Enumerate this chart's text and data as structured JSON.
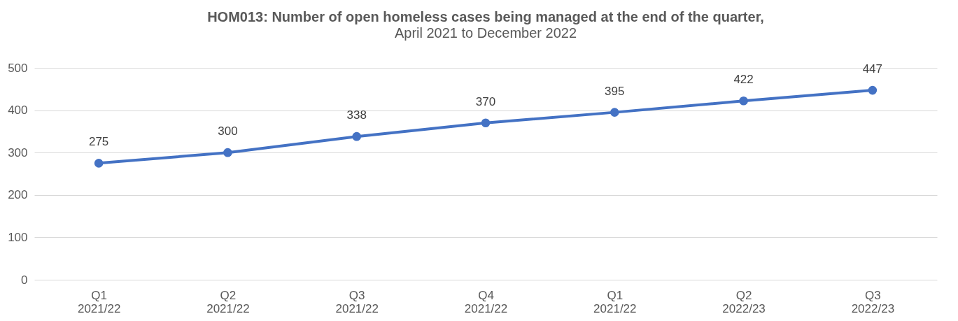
{
  "chart_data": {
    "type": "line",
    "title": "HOM013: Number of open homeless cases being managed at the end of the quarter,",
    "subtitle": "April 2021 to December 2022",
    "categories": [
      "Q1 2021/22",
      "Q2 2021/22",
      "Q3 2021/22",
      "Q4 2021/22",
      "Q1 2021/22",
      "Q2 2022/23",
      "Q3 2022/23"
    ],
    "series": [
      {
        "color": "#4472c4",
        "values": [
          275,
          300,
          338,
          370,
          395,
          422,
          447
        ]
      }
    ],
    "ylim": [
      0,
      500
    ],
    "yticks": [
      0,
      100,
      200,
      300,
      400,
      500
    ],
    "grid": "y",
    "marker": "circle",
    "line_style": "solid",
    "data_labels": true
  }
}
